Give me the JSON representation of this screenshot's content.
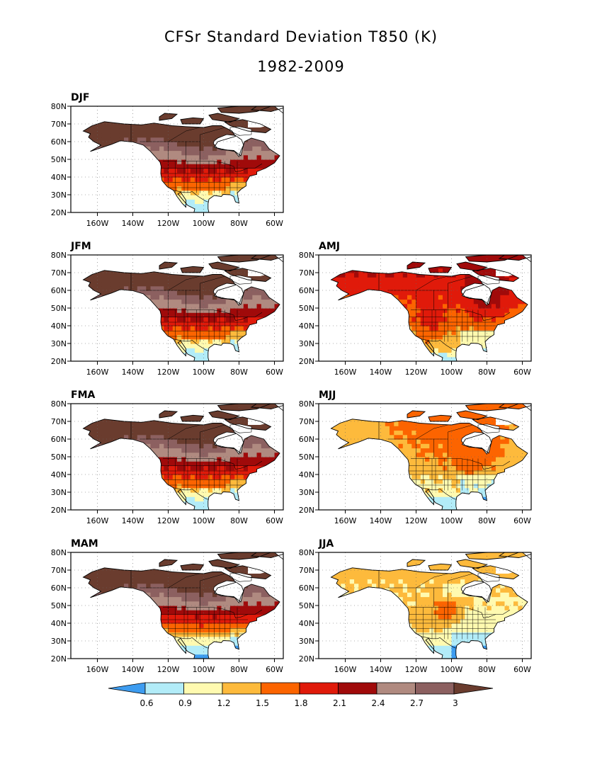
{
  "title": "CFSr Standard Deviation T850 (K)",
  "subtitle": "1982-2009",
  "chart_data": {
    "type": "heatmap",
    "variable": "T850 standard deviation",
    "units": "K",
    "lon_range": [
      -175,
      -55
    ],
    "lat_range": [
      20,
      80
    ],
    "x_ticks": [
      "160W",
      "140W",
      "120W",
      "100W",
      "80W",
      "60W"
    ],
    "y_ticks": [
      "20N",
      "30N",
      "40N",
      "50N",
      "60N",
      "70N",
      "80N"
    ],
    "grid": true,
    "panels": [
      {
        "label": "DJF",
        "position": "row1-left"
      },
      {
        "label": "JFM",
        "position": "row2-left"
      },
      {
        "label": "AMJ",
        "position": "row2-right"
      },
      {
        "label": "FMA",
        "position": "row3-left"
      },
      {
        "label": "MJJ",
        "position": "row3-right"
      },
      {
        "label": "MAM",
        "position": "row4-left"
      },
      {
        "label": "JJA",
        "position": "row4-right"
      }
    ],
    "colorbar": {
      "levels": [
        "0.6",
        "0.9",
        "1.2",
        "1.5",
        "1.8",
        "2.1",
        "2.4",
        "2.7",
        "3"
      ],
      "colors": [
        "#3d9cf0",
        "#b2ecf8",
        "#fffab0",
        "#fdba3c",
        "#fc6400",
        "#e01a0a",
        "#a00a0a",
        "#b08a80",
        "#8c6060",
        "#6a3c2e"
      ]
    }
  }
}
